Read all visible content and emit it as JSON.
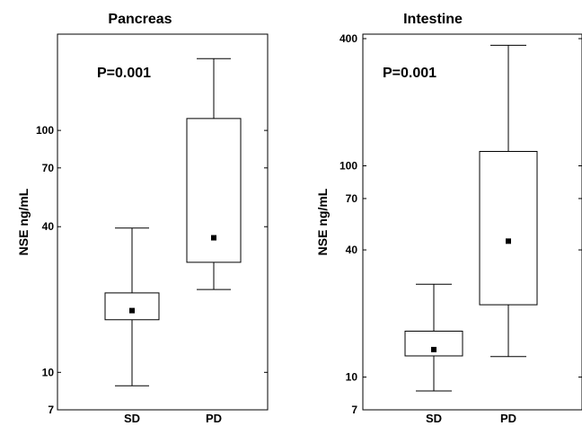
{
  "chart_data": [
    {
      "type": "box",
      "title": "Pancreas",
      "annotation": "P=0.001",
      "ylabel": "NSE ng/mL",
      "yscale": "log",
      "ylim": [
        7,
        250
      ],
      "yticks": [
        7,
        10,
        40,
        70,
        100
      ],
      "categories": [
        "SD",
        "PD"
      ],
      "boxes": [
        {
          "category": "SD",
          "whisker_low": 8.8,
          "q1": 16.5,
          "q3": 21.3,
          "whisker_high": 39.5,
          "mean": 18.0
        },
        {
          "category": "PD",
          "whisker_low": 22.0,
          "q1": 28.5,
          "q3": 112.0,
          "whisker_high": 198.0,
          "mean": 36.0
        }
      ]
    },
    {
      "type": "box",
      "title": "Intestine",
      "annotation": "P=0.001",
      "ylabel": "NSE ng/mL",
      "yscale": "log",
      "ylim": [
        7,
        420
      ],
      "yticks": [
        7,
        10,
        40,
        70,
        100,
        400
      ],
      "categories": [
        "SD",
        "PD"
      ],
      "boxes": [
        {
          "category": "SD",
          "whisker_low": 8.6,
          "q1": 12.6,
          "q3": 16.5,
          "whisker_high": 27.5,
          "mean": 13.5
        },
        {
          "category": "PD",
          "whisker_low": 12.5,
          "q1": 22.0,
          "q3": 117.0,
          "whisker_high": 372.0,
          "mean": 44.0
        }
      ]
    }
  ]
}
